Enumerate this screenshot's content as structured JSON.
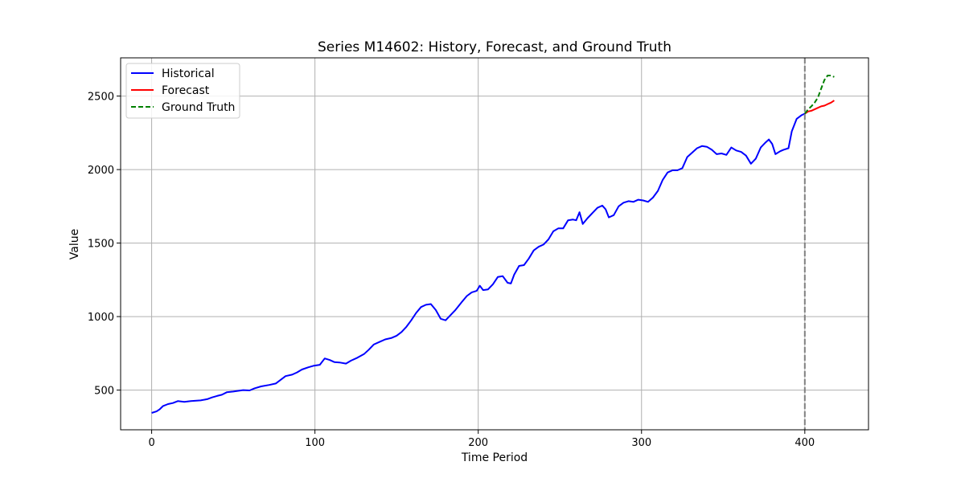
{
  "chart_data": {
    "type": "line",
    "title": "Series M14602: History, Forecast, and Ground Truth",
    "xlabel": "Time Period",
    "ylabel": "Value",
    "xlim": [
      -19,
      439
    ],
    "ylim": [
      230,
      2760
    ],
    "x_ticks": [
      0,
      100,
      200,
      300,
      400
    ],
    "y_ticks": [
      500,
      1000,
      1500,
      2000,
      2500
    ],
    "grid": true,
    "legend_position": "top-left",
    "forecast_start_marker": 400,
    "series": [
      {
        "name": "Historical",
        "color": "#0000ff",
        "dash": "solid",
        "points": [
          [
            0,
            345
          ],
          [
            3,
            355
          ],
          [
            5,
            370
          ],
          [
            7,
            392
          ],
          [
            10,
            405
          ],
          [
            13,
            412
          ],
          [
            16,
            425
          ],
          [
            20,
            420
          ],
          [
            24,
            425
          ],
          [
            30,
            430
          ],
          [
            34,
            438
          ],
          [
            37,
            450
          ],
          [
            40,
            460
          ],
          [
            43,
            468
          ],
          [
            46,
            485
          ],
          [
            50,
            490
          ],
          [
            53,
            495
          ],
          [
            56,
            500
          ],
          [
            60,
            498
          ],
          [
            63,
            512
          ],
          [
            67,
            525
          ],
          [
            72,
            535
          ],
          [
            76,
            545
          ],
          [
            79,
            570
          ],
          [
            82,
            595
          ],
          [
            86,
            605
          ],
          [
            89,
            620
          ],
          [
            92,
            640
          ],
          [
            96,
            655
          ],
          [
            99,
            665
          ],
          [
            103,
            672
          ],
          [
            106,
            715
          ],
          [
            109,
            705
          ],
          [
            112,
            690
          ],
          [
            115,
            688
          ],
          [
            119,
            680
          ],
          [
            122,
            700
          ],
          [
            126,
            720
          ],
          [
            130,
            745
          ],
          [
            133,
            775
          ],
          [
            136,
            810
          ],
          [
            140,
            830
          ],
          [
            143,
            845
          ],
          [
            147,
            855
          ],
          [
            150,
            870
          ],
          [
            153,
            895
          ],
          [
            156,
            930
          ],
          [
            159,
            975
          ],
          [
            162,
            1025
          ],
          [
            165,
            1065
          ],
          [
            168,
            1080
          ],
          [
            171,
            1085
          ],
          [
            174,
            1045
          ],
          [
            177,
            985
          ],
          [
            180,
            975
          ],
          [
            183,
            1010
          ],
          [
            186,
            1045
          ],
          [
            190,
            1100
          ],
          [
            193,
            1140
          ],
          [
            196,
            1165
          ],
          [
            199,
            1175
          ],
          [
            201,
            1210
          ],
          [
            203,
            1180
          ],
          [
            206,
            1185
          ],
          [
            209,
            1220
          ],
          [
            212,
            1270
          ],
          [
            215,
            1275
          ],
          [
            218,
            1230
          ],
          [
            220,
            1225
          ],
          [
            222,
            1285
          ],
          [
            225,
            1345
          ],
          [
            228,
            1350
          ],
          [
            231,
            1395
          ],
          [
            234,
            1450
          ],
          [
            237,
            1475
          ],
          [
            240,
            1490
          ],
          [
            243,
            1525
          ],
          [
            246,
            1580
          ],
          [
            249,
            1600
          ],
          [
            252,
            1600
          ],
          [
            255,
            1655
          ],
          [
            258,
            1660
          ],
          [
            260,
            1655
          ],
          [
            262,
            1710
          ],
          [
            264,
            1630
          ],
          [
            267,
            1670
          ],
          [
            270,
            1705
          ],
          [
            273,
            1740
          ],
          [
            276,
            1755
          ],
          [
            278,
            1730
          ],
          [
            280,
            1675
          ],
          [
            283,
            1690
          ],
          [
            286,
            1750
          ],
          [
            289,
            1775
          ],
          [
            292,
            1785
          ],
          [
            295,
            1780
          ],
          [
            298,
            1795
          ],
          [
            301,
            1790
          ],
          [
            304,
            1780
          ],
          [
            307,
            1810
          ],
          [
            310,
            1855
          ],
          [
            313,
            1930
          ],
          [
            316,
            1980
          ],
          [
            319,
            1995
          ],
          [
            322,
            1995
          ],
          [
            325,
            2010
          ],
          [
            328,
            2085
          ],
          [
            331,
            2115
          ],
          [
            334,
            2145
          ],
          [
            337,
            2160
          ],
          [
            340,
            2155
          ],
          [
            343,
            2135
          ],
          [
            346,
            2105
          ],
          [
            349,
            2110
          ],
          [
            352,
            2100
          ],
          [
            355,
            2150
          ],
          [
            358,
            2130
          ],
          [
            361,
            2120
          ],
          [
            364,
            2095
          ],
          [
            367,
            2040
          ],
          [
            370,
            2075
          ],
          [
            373,
            2150
          ],
          [
            376,
            2185
          ],
          [
            378,
            2205
          ],
          [
            380,
            2175
          ],
          [
            382,
            2105
          ],
          [
            385,
            2125
          ],
          [
            387,
            2135
          ],
          [
            390,
            2145
          ],
          [
            392,
            2260
          ],
          [
            395,
            2345
          ],
          [
            398,
            2370
          ],
          [
            400,
            2380
          ]
        ]
      },
      {
        "name": "Forecast",
        "color": "#ff0000",
        "dash": "solid",
        "points": [
          [
            400,
            2380
          ],
          [
            402,
            2395
          ],
          [
            404,
            2400
          ],
          [
            406,
            2410
          ],
          [
            408,
            2420
          ],
          [
            410,
            2430
          ],
          [
            412,
            2435
          ],
          [
            414,
            2445
          ],
          [
            416,
            2455
          ],
          [
            418,
            2470
          ]
        ]
      },
      {
        "name": "Ground Truth",
        "color": "#008000",
        "dash": "dashed",
        "points": [
          [
            400,
            2380
          ],
          [
            402,
            2410
          ],
          [
            404,
            2430
          ],
          [
            406,
            2455
          ],
          [
            408,
            2490
          ],
          [
            410,
            2550
          ],
          [
            412,
            2610
          ],
          [
            414,
            2640
          ],
          [
            416,
            2640
          ],
          [
            418,
            2630
          ]
        ]
      }
    ]
  }
}
